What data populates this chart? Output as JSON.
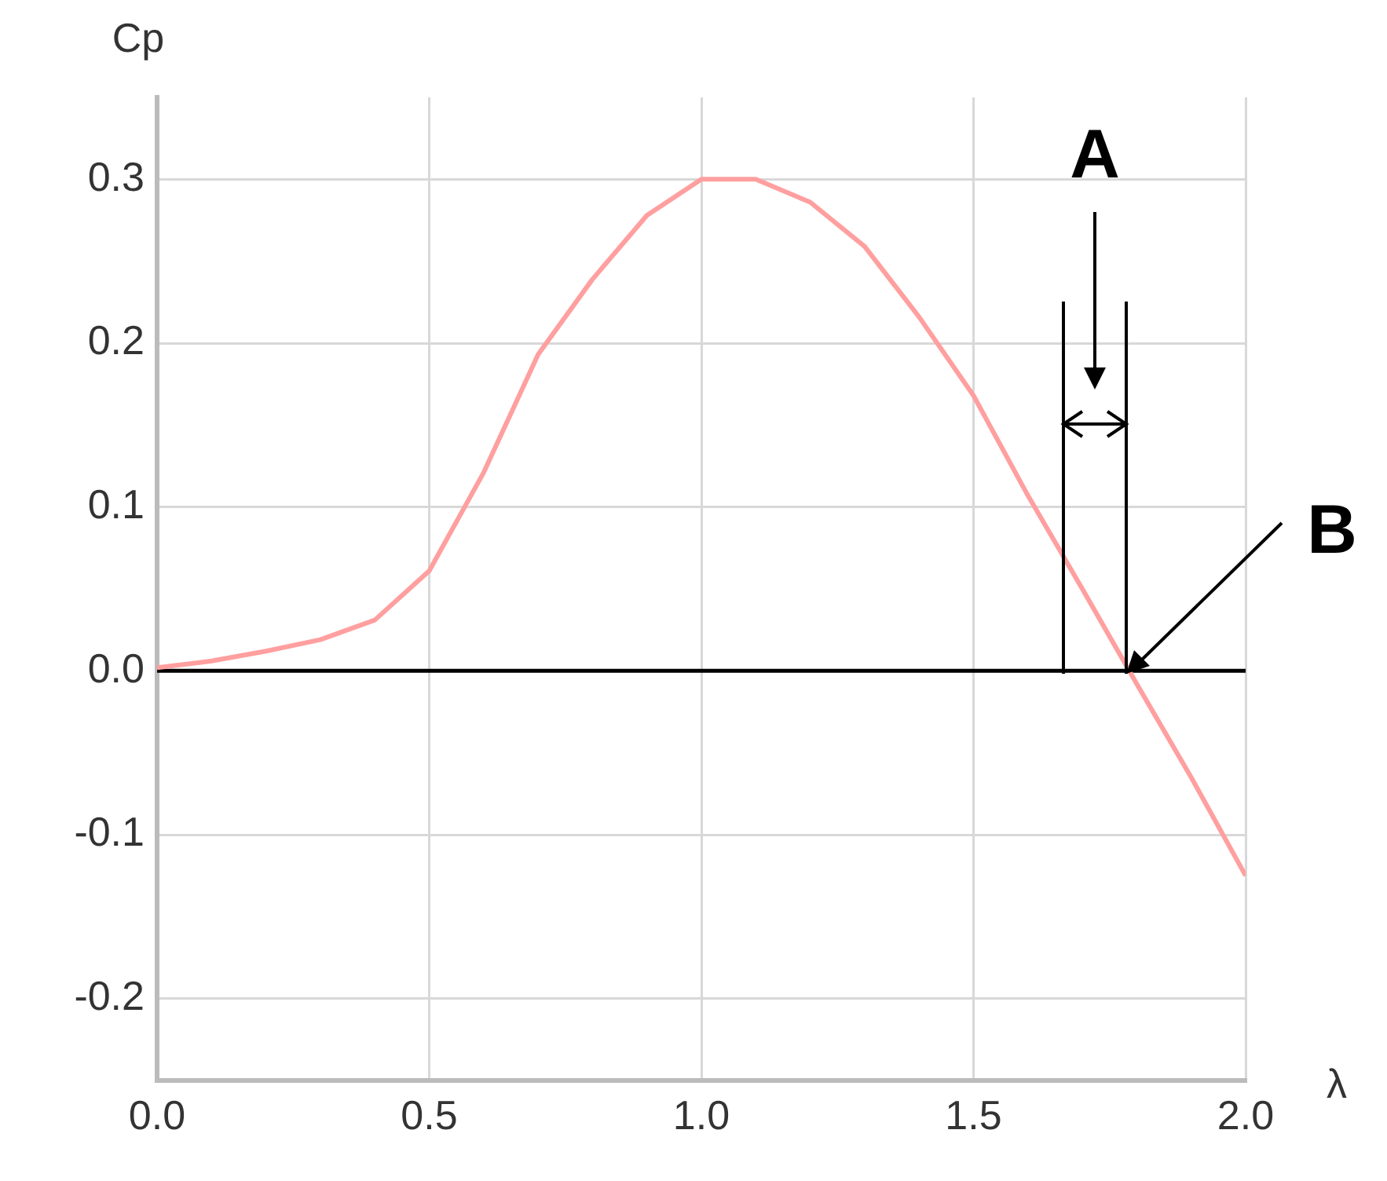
{
  "chart_data": {
    "type": "line",
    "xlabel": "λ",
    "ylabel": "Cp",
    "x": [
      0,
      0.1,
      0.2,
      0.3,
      0.4,
      0.5,
      0.6,
      0.7,
      0.8,
      0.9,
      1.0,
      1.1,
      1.2,
      1.3,
      1.4,
      1.5,
      1.6,
      1.7,
      1.8,
      1.9,
      2.0
    ],
    "series": [
      {
        "color": "#ff9f9f",
        "values": [
          0.002,
          0.006,
          0.012,
          0.019,
          0.031,
          0.061,
          0.121,
          0.193,
          0.239,
          0.278,
          0.3,
          0.3,
          0.286,
          0.259,
          0.216,
          0.168,
          0.107,
          0.05,
          -0.008,
          -0.065,
          -0.125
        ]
      }
    ],
    "xlim": [
      0,
      2
    ],
    "xticks": [
      {
        "value": 0,
        "label": "0.0"
      },
      0.5,
      {
        "value": 1,
        "label": "1.0"
      },
      1.5,
      {
        "value": 2,
        "label": "2.0"
      }
    ],
    "ylim": [
      -0.25,
      0.35
    ],
    "yticks": [
      -0.2,
      -0.1,
      {
        "value": 0,
        "label": "0.0"
      },
      0.1,
      0.2,
      0.3
    ],
    "ref_lines": [
      {
        "axis": "y",
        "value": 0,
        "color": "#000000"
      }
    ],
    "annotations": [
      "A",
      "B"
    ],
    "grid": true,
    "legend": false,
    "marker": "none",
    "line_style": "solid"
  }
}
